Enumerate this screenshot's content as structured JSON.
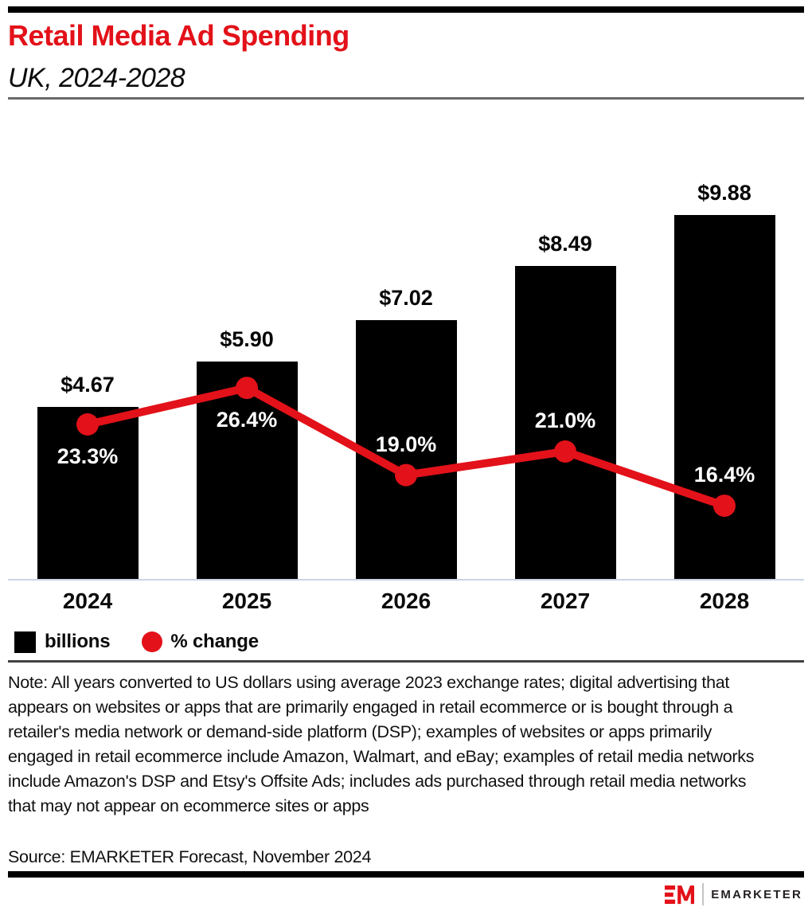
{
  "header": {
    "title": "Retail Media Ad Spending",
    "subtitle": "UK, 2024-2028"
  },
  "chart_data": {
    "type": "bar",
    "title": "Retail Media Ad Spending",
    "subtitle": "UK, 2024-2028",
    "categories": [
      "2024",
      "2025",
      "2026",
      "2027",
      "2028"
    ],
    "series": [
      {
        "name": "billions",
        "type": "bar",
        "unit": "US$ billions",
        "values": [
          4.67,
          5.9,
          7.02,
          8.49,
          9.88
        ],
        "labels": [
          "$4.67",
          "$5.90",
          "$7.02",
          "$8.49",
          "$9.88"
        ]
      },
      {
        "name": "% change",
        "type": "line",
        "unit": "percent",
        "values": [
          23.3,
          26.4,
          19.0,
          21.0,
          16.4
        ],
        "labels": [
          "23.3%",
          "26.4%",
          "19.0%",
          "21.0%",
          "16.4%"
        ],
        "label_position": [
          "below",
          "below",
          "above",
          "above",
          "above"
        ]
      }
    ],
    "colors": {
      "bar": "#000000",
      "line": "#e31119"
    },
    "xlabel": "",
    "ylabel": "",
    "grid": false,
    "legend_position": "bottom"
  },
  "legend": {
    "bars_label": "billions",
    "line_label": "% change"
  },
  "footer": {
    "note": "Note: All years converted to US dollars using average 2023 exchange rates; digital advertising that appears on websites or apps that are primarily engaged in retail ecommerce or is bought through a retailer's media network or demand-side platform (DSP); examples of websites or apps primarily engaged in retail ecommerce include Amazon, Walmart, and eBay; examples of retail media networks include Amazon's DSP and Etsy's Offsite Ads; includes ads purchased through retail media networks that may not appear on ecommerce sites or apps",
    "source": "Source: EMARKETER Forecast, November 2024",
    "brand": "EMARKETER"
  },
  "colors": {
    "accent_red": "#e31119",
    "bar_black": "#000000",
    "baseline": "#ccd4e4"
  }
}
